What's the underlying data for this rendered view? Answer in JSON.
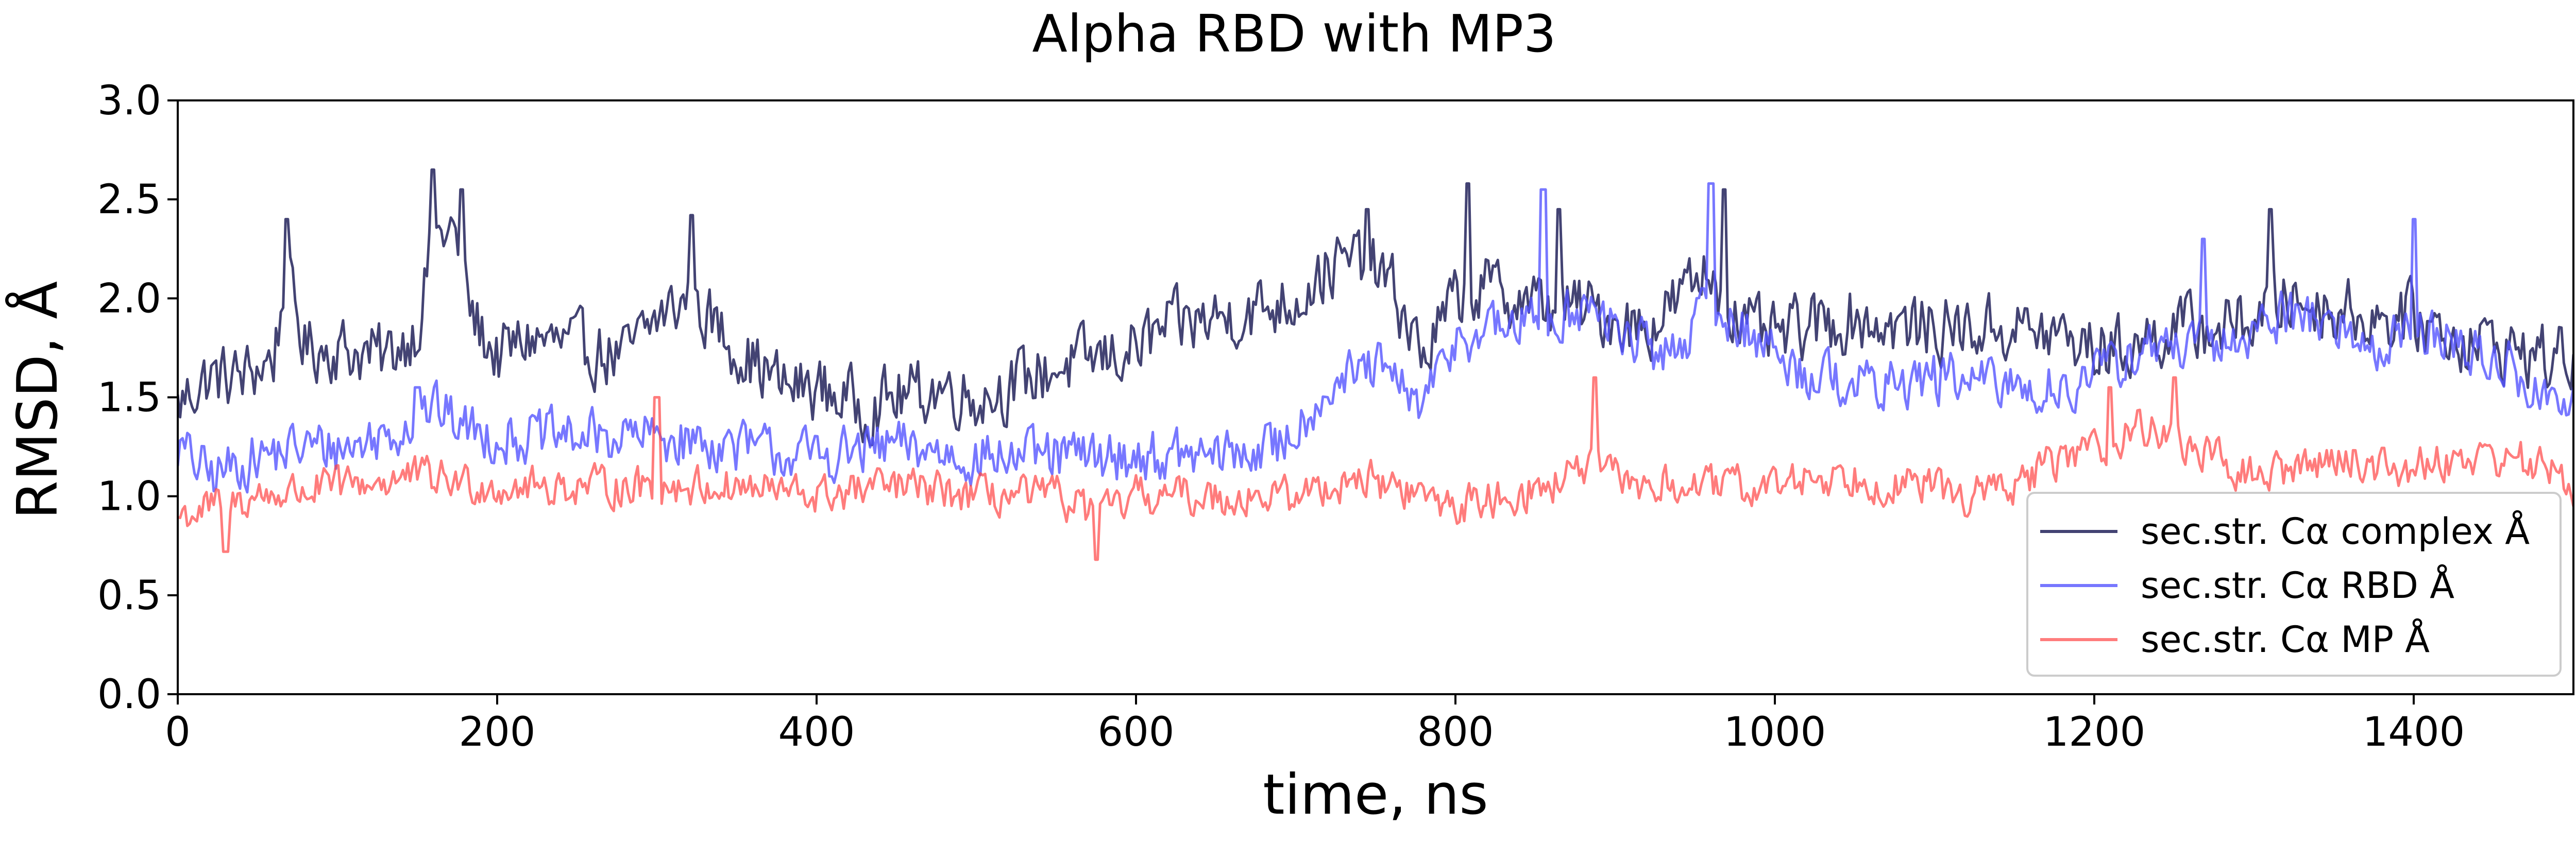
{
  "chart_data": {
    "type": "line",
    "title": "Alpha RBD with MP3",
    "xlabel": "time, ns",
    "ylabel": "RMSD, Å",
    "xlim": [
      0,
      1500
    ],
    "ylim": [
      0.0,
      3.0
    ],
    "xticks": [
      "0",
      "200",
      "400",
      "600",
      "800",
      "1000",
      "1200",
      "1400"
    ],
    "yticks": [
      "0.0",
      "0.5",
      "1.0",
      "1.5",
      "2.0",
      "2.5",
      "3.0"
    ],
    "grid": false,
    "legend_position": "lower-right",
    "sampling_step_ns": 1.5,
    "series": [
      {
        "name": "sec.str. Cα complex Å",
        "color": "#141450",
        "opacity": 0.8,
        "anchors": [
          [
            0,
            1.45
          ],
          [
            10,
            1.55
          ],
          [
            20,
            1.6
          ],
          [
            40,
            1.6
          ],
          [
            60,
            1.7
          ],
          [
            68,
            2.1
          ],
          [
            80,
            1.75
          ],
          [
            100,
            1.75
          ],
          [
            130,
            1.7
          ],
          [
            150,
            1.85
          ],
          [
            160,
            2.3
          ],
          [
            172,
            2.35
          ],
          [
            185,
            1.9
          ],
          [
            200,
            1.7
          ],
          [
            220,
            1.8
          ],
          [
            250,
            1.75
          ],
          [
            280,
            1.7
          ],
          [
            300,
            1.9
          ],
          [
            320,
            2.0
          ],
          [
            350,
            1.75
          ],
          [
            380,
            1.55
          ],
          [
            400,
            1.55
          ],
          [
            430,
            1.45
          ],
          [
            450,
            1.5
          ],
          [
            480,
            1.55
          ],
          [
            500,
            1.5
          ],
          [
            520,
            1.55
          ],
          [
            550,
            1.65
          ],
          [
            580,
            1.7
          ],
          [
            600,
            1.75
          ],
          [
            620,
            1.85
          ],
          [
            650,
            1.9
          ],
          [
            680,
            1.95
          ],
          [
            700,
            2.0
          ],
          [
            720,
            2.15
          ],
          [
            745,
            2.2
          ],
          [
            760,
            2.05
          ],
          [
            780,
            1.7
          ],
          [
            800,
            2.0
          ],
          [
            820,
            2.05
          ],
          [
            840,
            2.0
          ],
          [
            860,
            1.95
          ],
          [
            880,
            1.95
          ],
          [
            900,
            1.9
          ],
          [
            920,
            1.85
          ],
          [
            940,
            2.0
          ],
          [
            960,
            2.15
          ],
          [
            980,
            1.85
          ],
          [
            1000,
            1.8
          ],
          [
            1020,
            1.85
          ],
          [
            1050,
            1.9
          ],
          [
            1080,
            1.85
          ],
          [
            1100,
            1.85
          ],
          [
            1120,
            1.85
          ],
          [
            1150,
            1.85
          ],
          [
            1180,
            1.8
          ],
          [
            1200,
            1.75
          ],
          [
            1220,
            1.75
          ],
          [
            1250,
            1.85
          ],
          [
            1280,
            1.85
          ],
          [
            1300,
            1.9
          ],
          [
            1320,
            2.0
          ],
          [
            1350,
            1.95
          ],
          [
            1380,
            1.9
          ],
          [
            1400,
            1.9
          ],
          [
            1430,
            1.8
          ],
          [
            1460,
            1.75
          ],
          [
            1480,
            1.7
          ],
          [
            1500,
            1.7
          ]
        ],
        "noise": 0.15,
        "spikes": [
          [
            68,
            2.4
          ],
          [
            160,
            2.65
          ],
          [
            178,
            2.55
          ],
          [
            322,
            2.42
          ],
          [
            745,
            2.45
          ],
          [
            808,
            2.58
          ],
          [
            865,
            2.45
          ],
          [
            968,
            2.55
          ],
          [
            1310,
            2.45
          ]
        ]
      },
      {
        "name": "sec.str. Cα RBD Å",
        "color": "#5555ff",
        "opacity": 0.8,
        "anchors": [
          [
            0,
            1.25
          ],
          [
            20,
            1.1
          ],
          [
            50,
            1.2
          ],
          [
            80,
            1.25
          ],
          [
            110,
            1.25
          ],
          [
            140,
            1.35
          ],
          [
            160,
            1.45
          ],
          [
            180,
            1.35
          ],
          [
            200,
            1.3
          ],
          [
            250,
            1.3
          ],
          [
            300,
            1.3
          ],
          [
            350,
            1.25
          ],
          [
            400,
            1.2
          ],
          [
            450,
            1.25
          ],
          [
            500,
            1.2
          ],
          [
            550,
            1.2
          ],
          [
            600,
            1.2
          ],
          [
            650,
            1.2
          ],
          [
            690,
            1.25
          ],
          [
            720,
            1.55
          ],
          [
            750,
            1.65
          ],
          [
            780,
            1.45
          ],
          [
            800,
            1.8
          ],
          [
            830,
            1.85
          ],
          [
            860,
            1.9
          ],
          [
            880,
            1.95
          ],
          [
            900,
            1.85
          ],
          [
            930,
            1.7
          ],
          [
            960,
            1.95
          ],
          [
            990,
            1.8
          ],
          [
            1010,
            1.65
          ],
          [
            1040,
            1.6
          ],
          [
            1060,
            1.55
          ],
          [
            1100,
            1.6
          ],
          [
            1150,
            1.55
          ],
          [
            1180,
            1.55
          ],
          [
            1200,
            1.6
          ],
          [
            1230,
            1.75
          ],
          [
            1260,
            1.75
          ],
          [
            1280,
            1.75
          ],
          [
            1300,
            1.85
          ],
          [
            1330,
            1.95
          ],
          [
            1350,
            1.85
          ],
          [
            1380,
            1.75
          ],
          [
            1400,
            1.85
          ],
          [
            1430,
            1.75
          ],
          [
            1460,
            1.65
          ],
          [
            1480,
            1.5
          ],
          [
            1500,
            1.45
          ]
        ],
        "noise": 0.12,
        "spikes": [
          [
            150,
            1.55
          ],
          [
            855,
            2.55
          ],
          [
            960,
            2.58
          ],
          [
            1400,
            2.4
          ],
          [
            1268,
            2.3
          ]
        ]
      },
      {
        "name": "sec.str. Cα MP Å",
        "color": "#ff4444",
        "opacity": 0.7,
        "anchors": [
          [
            0,
            0.9
          ],
          [
            50,
            1.0
          ],
          [
            100,
            1.05
          ],
          [
            150,
            1.1
          ],
          [
            200,
            1.05
          ],
          [
            250,
            1.05
          ],
          [
            300,
            1.05
          ],
          [
            350,
            1.05
          ],
          [
            400,
            1.0
          ],
          [
            450,
            1.05
          ],
          [
            500,
            1.0
          ],
          [
            550,
            1.0
          ],
          [
            580,
            0.9
          ],
          [
            600,
            1.0
          ],
          [
            650,
            1.0
          ],
          [
            700,
            1.0
          ],
          [
            740,
            1.1
          ],
          [
            760,
            1.05
          ],
          [
            780,
            1.0
          ],
          [
            800,
            0.95
          ],
          [
            830,
            1.0
          ],
          [
            860,
            1.05
          ],
          [
            880,
            1.15
          ],
          [
            900,
            1.1
          ],
          [
            920,
            1.05
          ],
          [
            950,
            1.05
          ],
          [
            1000,
            1.05
          ],
          [
            1020,
            1.1
          ],
          [
            1050,
            1.1
          ],
          [
            1080,
            1.05
          ],
          [
            1100,
            1.05
          ],
          [
            1120,
            1.0
          ],
          [
            1150,
            1.05
          ],
          [
            1180,
            1.2
          ],
          [
            1200,
            1.25
          ],
          [
            1230,
            1.35
          ],
          [
            1250,
            1.3
          ],
          [
            1270,
            1.2
          ],
          [
            1300,
            1.1
          ],
          [
            1330,
            1.15
          ],
          [
            1350,
            1.2
          ],
          [
            1380,
            1.15
          ],
          [
            1400,
            1.15
          ],
          [
            1430,
            1.2
          ],
          [
            1460,
            1.2
          ],
          [
            1480,
            1.15
          ],
          [
            1500,
            1.05
          ]
        ],
        "noise": 0.09,
        "spikes": [
          [
            300,
            1.5
          ],
          [
            887,
            1.6
          ],
          [
            1250,
            1.6
          ],
          [
            1210,
            1.55
          ],
          [
            575,
            0.68
          ],
          [
            30,
            0.72
          ]
        ]
      }
    ]
  }
}
